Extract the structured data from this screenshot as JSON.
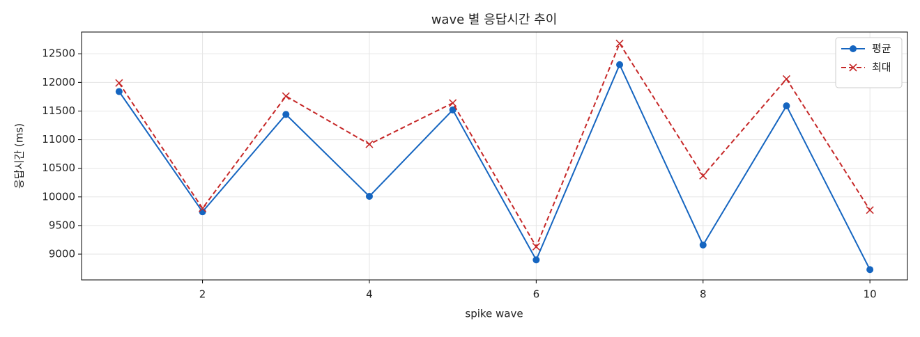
{
  "chart_data": {
    "type": "line",
    "title": "wave 별 응답시간 추이",
    "xlabel": "spike wave",
    "ylabel": "응답시간 (ms)",
    "x": [
      1,
      2,
      3,
      4,
      5,
      6,
      7,
      8,
      9,
      10
    ],
    "series": [
      {
        "name": "평균",
        "color": "#1565c0",
        "marker": "o",
        "linestyle": "solid",
        "values": [
          11840,
          9740,
          11440,
          10010,
          11520,
          8900,
          12310,
          9160,
          11590,
          8730
        ]
      },
      {
        "name": "최대",
        "color": "#c62828",
        "marker": "x",
        "linestyle": "dashed",
        "values": [
          11990,
          9800,
          11760,
          10920,
          11640,
          9130,
          12680,
          10370,
          12060,
          9770
        ]
      }
    ],
    "xlim": [
      0.55,
      10.45
    ],
    "xticks": [
      2,
      4,
      6,
      8,
      10
    ],
    "ylim": [
      8550,
      12880
    ],
    "yticks": [
      9000,
      9500,
      10000,
      10500,
      11000,
      11500,
      12000,
      12500
    ],
    "grid": true,
    "legend": "upper right"
  }
}
